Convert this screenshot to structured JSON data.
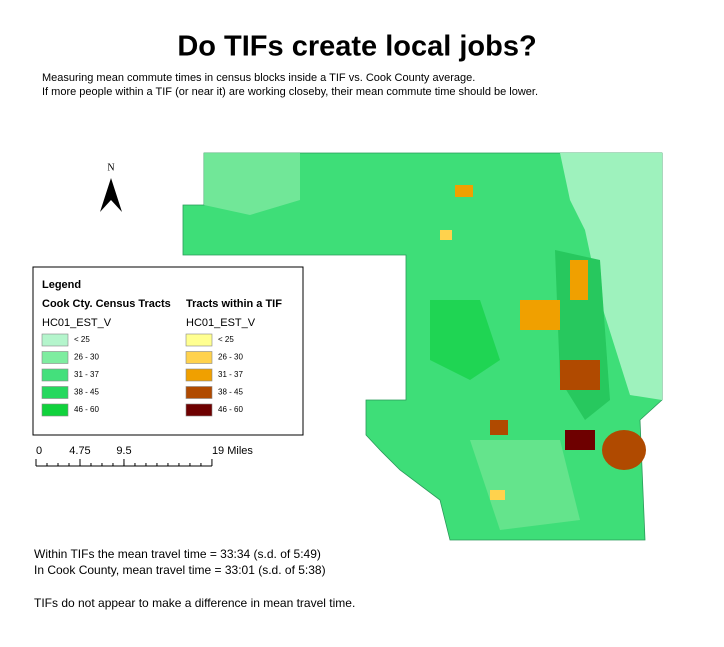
{
  "title": "Do TIFs create local jobs?",
  "subtitle": [
    "Measuring mean commute times in census blocks inside a TIF vs. Cook County average.",
    "If more people within a TIF (or near it) are working closeby, their mean commute time should be lower."
  ],
  "north_arrow": {
    "label": "N"
  },
  "legend": {
    "title": "Legend",
    "groups": [
      {
        "title": "Cook Cty. Census Tracts",
        "field": "HC01_EST_V",
        "items": [
          {
            "label": "< 25",
            "color": "#b4f5cc"
          },
          {
            "label": "26 - 30",
            "color": "#7eeda0"
          },
          {
            "label": "31 - 37",
            "color": "#44e07c"
          },
          {
            "label": "38 - 45",
            "color": "#26d85e"
          },
          {
            "label": "46 - 60",
            "color": "#10d23c"
          }
        ]
      },
      {
        "title": "Tracts within a TIF",
        "field": "HC01_EST_V",
        "items": [
          {
            "label": "< 25",
            "color": "#ffff90"
          },
          {
            "label": "26 - 30",
            "color": "#ffd24d"
          },
          {
            "label": "31 - 37",
            "color": "#f0a000"
          },
          {
            "label": "38 - 45",
            "color": "#b04a00"
          },
          {
            "label": "46 - 60",
            "color": "#6e0000"
          }
        ]
      }
    ]
  },
  "scale_bar": {
    "ticks": [
      0,
      4.75,
      9.5,
      {
        "value": 19,
        "label": "19 Miles"
      }
    ]
  },
  "notes": [
    "Within TIFs the mean travel time = 33:34 (s.d. of 5:49)",
    "In Cook County, mean travel time = 33:01 (s.d. of 5:38)",
    "TIFs do not appear to make a difference in mean travel time."
  ]
}
